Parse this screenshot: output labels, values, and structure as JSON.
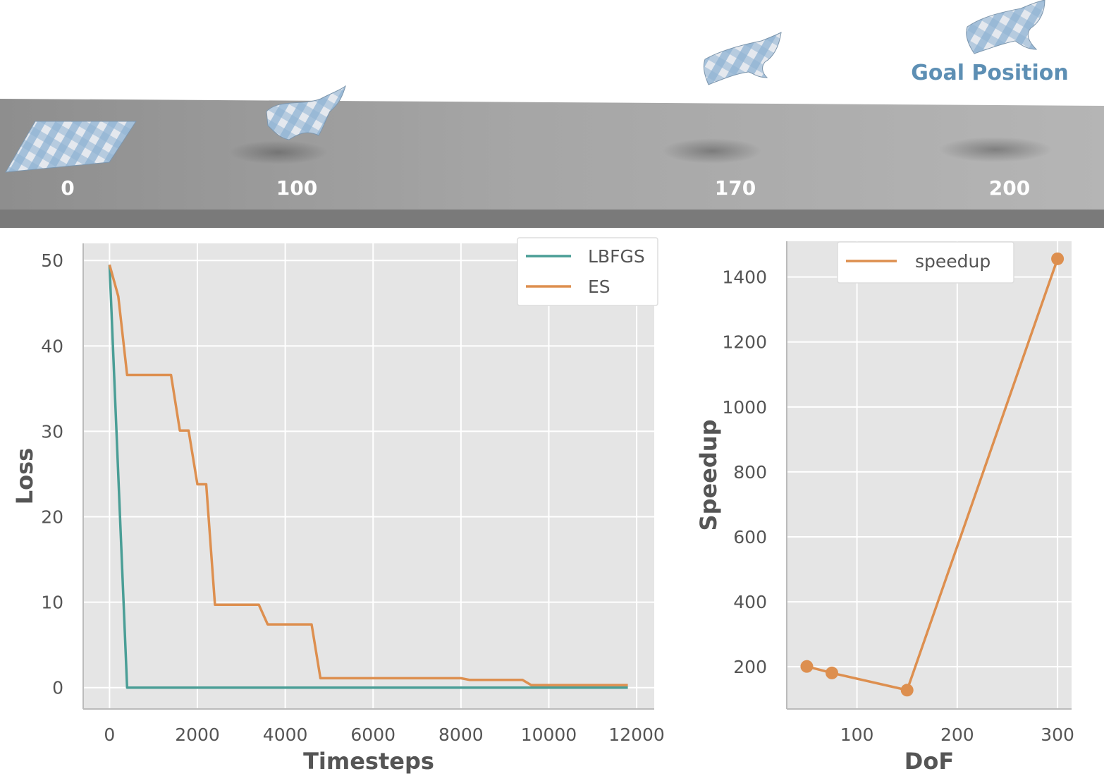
{
  "scene": {
    "goal_label": "Goal Position",
    "frames": [
      "0",
      "100",
      "170",
      "200"
    ]
  },
  "colors": {
    "lbfgs": "#4a9e96",
    "es": "#dd8f4f",
    "speedup": "#dd8f4f",
    "plot_bg": "#e5e5e5",
    "grid": "#ffffff",
    "goal_label": "#5d8fb4"
  },
  "chart_data": [
    {
      "type": "line",
      "xlabel": "Timesteps",
      "ylabel": "Loss",
      "xlim": [
        -600,
        12400
      ],
      "ylim": [
        -2.5,
        52
      ],
      "xticks": [
        0,
        2000,
        4000,
        6000,
        8000,
        10000,
        12000
      ],
      "yticks": [
        0,
        10,
        20,
        30,
        40,
        50
      ],
      "grid": true,
      "legend": "top-right",
      "series": [
        {
          "name": "LBFGS",
          "x": [
            0,
            400,
            11800
          ],
          "y": [
            49.5,
            0.0,
            0.0
          ]
        },
        {
          "name": "ES",
          "x": [
            0,
            200,
            400,
            1400,
            1600,
            1800,
            2000,
            2200,
            2400,
            3400,
            3600,
            4600,
            4800,
            8000,
            8200,
            9400,
            9600,
            11800
          ],
          "y": [
            49.5,
            45.8,
            36.6,
            36.6,
            30.1,
            30.1,
            23.8,
            23.8,
            9.7,
            9.7,
            7.4,
            7.4,
            1.1,
            1.1,
            0.9,
            0.9,
            0.3,
            0.3
          ]
        }
      ]
    },
    {
      "type": "line",
      "xlabel": "DoF",
      "ylabel": "Speedup",
      "xlim": [
        30,
        314
      ],
      "ylim": [
        70,
        1510
      ],
      "xticks": [
        100,
        200,
        300
      ],
      "yticks": [
        200,
        400,
        600,
        800,
        1000,
        1200,
        1400
      ],
      "grid": true,
      "legend": "top-left",
      "series": [
        {
          "name": "speedup",
          "x": [
            50,
            75,
            150,
            300
          ],
          "y": [
            201,
            181,
            128,
            1456
          ]
        }
      ]
    }
  ]
}
